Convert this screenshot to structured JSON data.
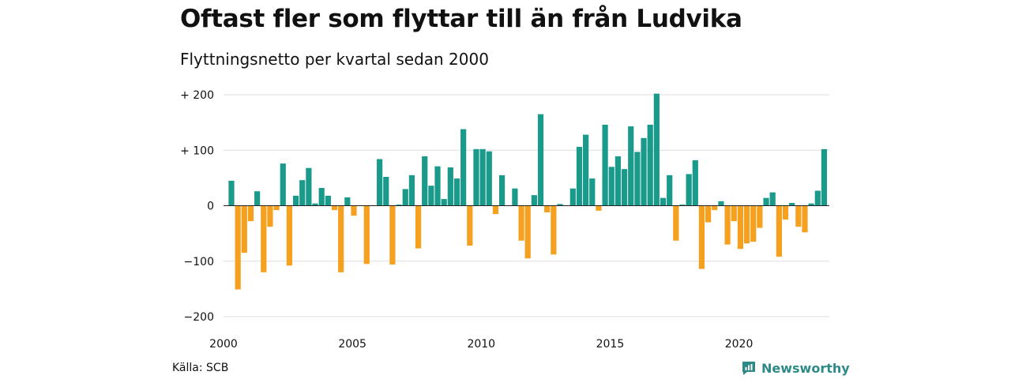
{
  "title": "Oftast fler som flyttar till än från Ludvika",
  "subtitle": "Flyttningsnetto per kvartal sedan 2000",
  "source": "Källa: SCB",
  "brand": {
    "name": "Newsworthy",
    "icon": "newsworthy-logo-icon"
  },
  "colors": {
    "positive": "#1a9a8a",
    "negative": "#f5a01e",
    "grid": "#dddddd",
    "brand": "#2d8a86"
  },
  "chart_data": {
    "type": "bar",
    "title": "Oftast fler som flyttar till än från Ludvika",
    "subtitle": "Flyttningsnetto per kvartal sedan 2000",
    "x_start": 2000,
    "x_ticks": [
      2000,
      2005,
      2010,
      2015,
      2020
    ],
    "x_tick_labels": [
      "2000",
      "2005",
      "2010",
      "2015",
      "2020"
    ],
    "ylim": [
      -200,
      200
    ],
    "y_ticks": [
      200,
      100,
      0,
      -100,
      -200
    ],
    "y_tick_labels": [
      "+ 200",
      "+ 100",
      "0",
      "−100",
      "−200"
    ],
    "grid": true,
    "legend": "none",
    "values": [
      45,
      -151,
      -85,
      -28,
      26,
      -120,
      -38,
      -8,
      76,
      -108,
      18,
      46,
      68,
      4,
      32,
      18,
      -8,
      -120,
      15,
      -18,
      0,
      -105,
      0,
      84,
      52,
      -106,
      2,
      30,
      55,
      -77,
      89,
      36,
      71,
      12,
      69,
      49,
      138,
      -72,
      102,
      102,
      98,
      -15,
      55,
      0,
      31,
      -63,
      -95,
      19,
      165,
      -12,
      -88,
      3,
      0,
      31,
      106,
      128,
      49,
      -9,
      146,
      70,
      89,
      66,
      143,
      97,
      122,
      146,
      202,
      14,
      55,
      -63,
      2,
      57,
      82,
      -114,
      -30,
      -8,
      8,
      -70,
      -28,
      -78,
      -68,
      -65,
      -40,
      14,
      24,
      -92,
      -25,
      5,
      -38,
      -48,
      4,
      27,
      102
    ]
  }
}
